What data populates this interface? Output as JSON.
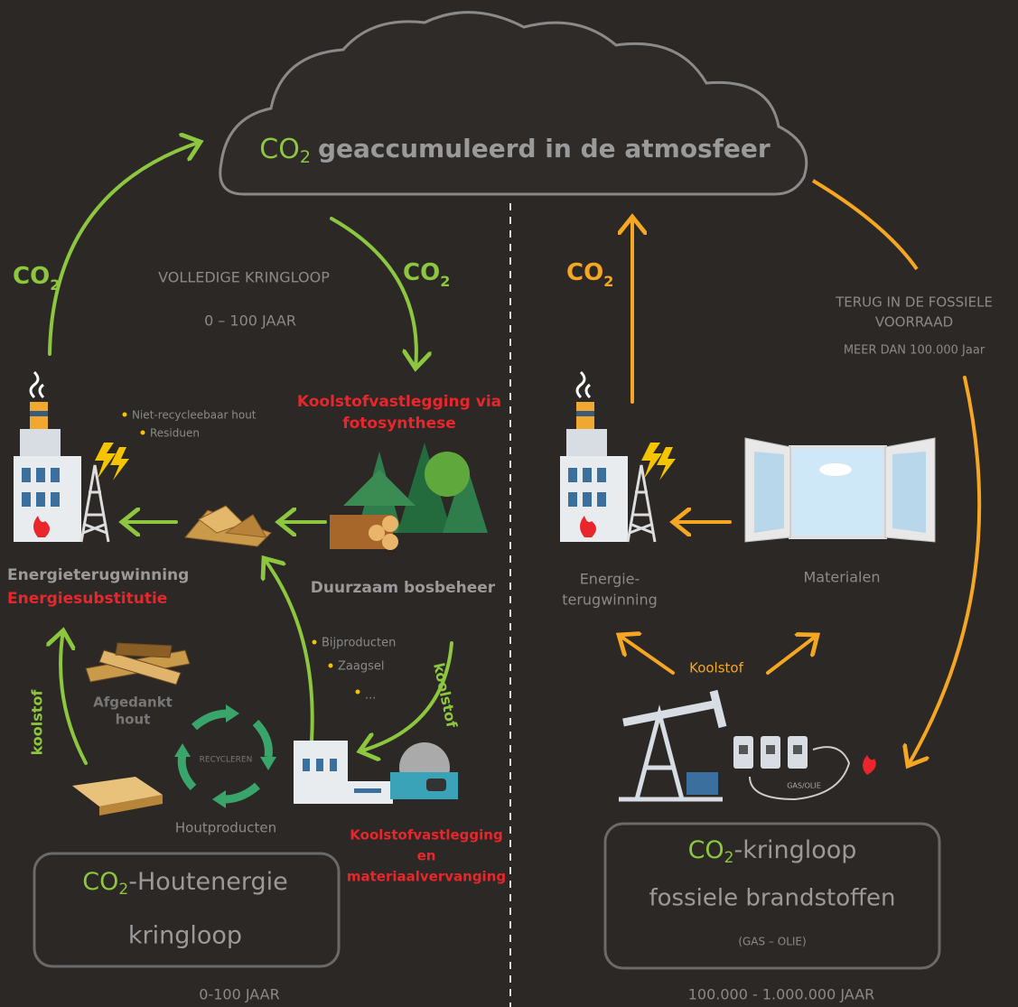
{
  "cloud": {
    "co2": {
      "main": "CO",
      "sub": "2"
    },
    "text": "geaccumuleerd in de atmosfeer"
  },
  "wood_cycle": {
    "co2_up": {
      "main": "CO",
      "sub": "2"
    },
    "co2_down": {
      "main": "CO",
      "sub": "2"
    },
    "cycle_label": "VOLLEDIGE KRINGLOOP",
    "cycle_period": "0 – 100 JAAR",
    "photosynthesis": [
      "Koolstofvastlegging via",
      "fotosynthese"
    ],
    "energy_inputs": [
      "Niet-recycleebaar hout",
      "Residuen"
    ],
    "energy_recovery": "Energieterugwinning",
    "energy_substitution": "Energiesubstitutie",
    "forest": "Duurzaam bosbeheer",
    "byproducts": [
      "Bijproducten",
      "Zaagsel",
      "..."
    ],
    "carbon_left": "koolstof",
    "carbon_right": "koolstof",
    "discarded_wood": [
      "Afgedankt",
      "hout"
    ],
    "recycling": "RECYCLEREN",
    "wood_products": "Houtproducten",
    "storage": [
      "Koolstofvastlegging",
      "en",
      "materiaalvervanging"
    ],
    "box": {
      "co2": {
        "main": "CO",
        "sub": "2"
      },
      "title": "-Houtenergie",
      "subtitle": "kringloop"
    },
    "period": "0-100 JAAR"
  },
  "fossil_cycle": {
    "co2_up": {
      "main": "CO",
      "sub": "2"
    },
    "return": [
      "TERUG IN DE FOSSIELE",
      "VOORRAAD"
    ],
    "return_period": "MEER DAN 100.000 Jaar",
    "energy_recovery": [
      "Energie-",
      "terugwinning"
    ],
    "materials": "Materialen",
    "carbon": "Koolstof",
    "gas_oil_tank": "GAS/OLIE",
    "box": {
      "co2": {
        "main": "CO",
        "sub": "2"
      },
      "title": "-kringloop",
      "subtitle": "fossiele brandstoffen",
      "note": "(GAS – OLIE)"
    },
    "period": "100.000 - 1.000.000 JAAR"
  }
}
